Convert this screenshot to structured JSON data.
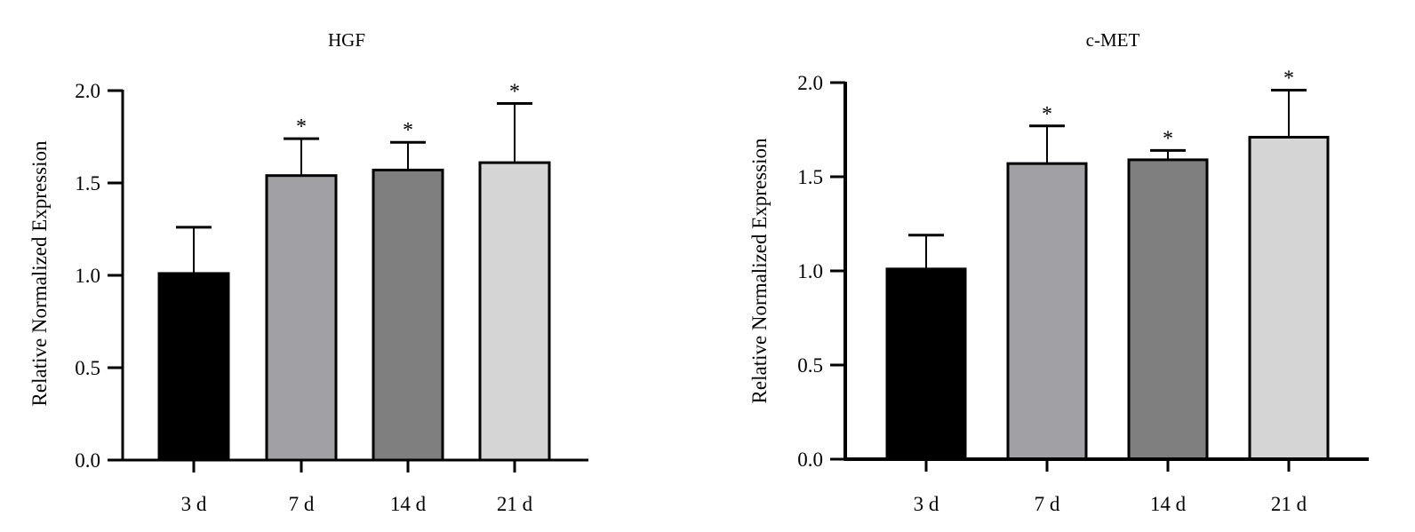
{
  "chart_data": [
    {
      "type": "bar",
      "title": "HGF",
      "ylabel": "Relative Normalized Expression",
      "xlabel": "",
      "ylim": [
        0,
        2.0
      ],
      "yticks": [
        "0.0",
        "0.5",
        "1.0",
        "1.5",
        "2.0"
      ],
      "categories": [
        "3 d",
        "7 d",
        "14 d",
        "21 d"
      ],
      "values": [
        1.01,
        1.54,
        1.57,
        1.61
      ],
      "errors": [
        0.25,
        0.2,
        0.15,
        0.32
      ],
      "significance": [
        "",
        "*",
        "*",
        "*"
      ],
      "colors": [
        "#000000",
        "#a0a0a5",
        "#7f7f7f",
        "#d5d5d5"
      ],
      "grid": false
    },
    {
      "type": "bar",
      "title": "c-MET",
      "ylabel": "Relative Normalized Expression",
      "xlabel": "",
      "ylim": [
        0,
        2.0
      ],
      "yticks": [
        "0.0",
        "0.5",
        "1.0",
        "1.5",
        "2.0"
      ],
      "categories": [
        "3 d",
        "7 d",
        "14 d",
        "21 d"
      ],
      "values": [
        1.01,
        1.57,
        1.59,
        1.71
      ],
      "errors": [
        0.18,
        0.2,
        0.05,
        0.25
      ],
      "significance": [
        "",
        "*",
        "*",
        "*"
      ],
      "colors": [
        "#000000",
        "#a0a0a5",
        "#7f7f7f",
        "#d5d5d5"
      ],
      "grid": false
    }
  ]
}
